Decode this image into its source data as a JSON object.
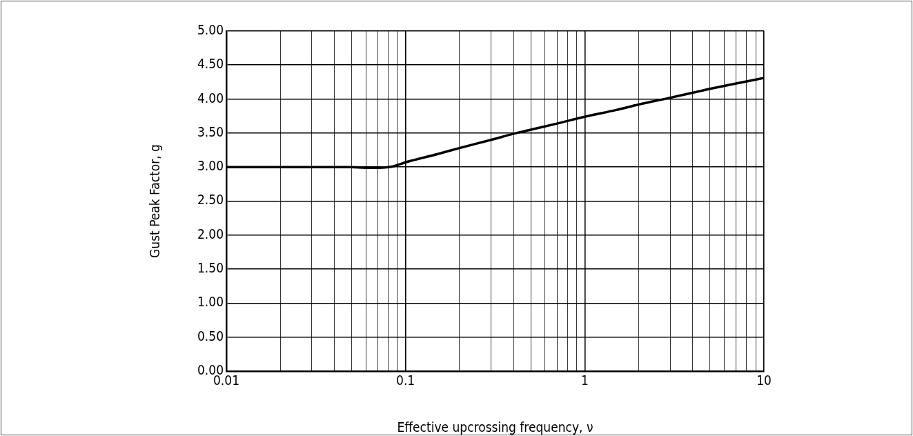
{
  "chart_data": {
    "type": "line",
    "xlabel": "Effective upcrossing frequency, ν",
    "ylabel": "Gust Peak Factor, g",
    "x": [
      0.01,
      0.02,
      0.03,
      0.05,
      0.06,
      0.07,
      0.08,
      0.085,
      0.09,
      0.1,
      0.15,
      0.2,
      0.3,
      0.4,
      0.5,
      0.7,
      1,
      1.5,
      2,
      3,
      5,
      7,
      10
    ],
    "series": [
      {
        "color": "#000000",
        "values": [
          3.0,
          3.0,
          3.0,
          3.0,
          2.99,
          2.99,
          3.0,
          3.01,
          3.03,
          3.07,
          3.19,
          3.28,
          3.4,
          3.49,
          3.55,
          3.64,
          3.74,
          3.84,
          3.92,
          4.02,
          4.15,
          4.23,
          4.31
        ]
      }
    ],
    "log": "x",
    "xlim": [
      0.01,
      10
    ],
    "ylim": [
      0,
      5
    ],
    "xticks": [
      0.01,
      {
        "value": 0.02,
        "label": null
      },
      {
        "value": 0.03,
        "label": null
      },
      {
        "value": 0.04,
        "label": null
      },
      {
        "value": 0.05,
        "label": null
      },
      {
        "value": 0.06,
        "label": null
      },
      {
        "value": 0.07,
        "label": null
      },
      {
        "value": 0.08,
        "label": null
      },
      {
        "value": 0.09,
        "label": null
      },
      0.1,
      {
        "value": 0.2,
        "label": null
      },
      {
        "value": 0.3,
        "label": null
      },
      {
        "value": 0.4,
        "label": null
      },
      {
        "value": 0.5,
        "label": null
      },
      {
        "value": 0.6,
        "label": null
      },
      {
        "value": 0.7,
        "label": null
      },
      {
        "value": 0.8,
        "label": null
      },
      {
        "value": 0.9,
        "label": null
      },
      1,
      {
        "value": 2,
        "label": null
      },
      {
        "value": 3,
        "label": null
      },
      {
        "value": 4,
        "label": null
      },
      {
        "value": 5,
        "label": null
      },
      {
        "value": 6,
        "label": null
      },
      {
        "value": 7,
        "label": null
      },
      {
        "value": 8,
        "label": null
      },
      {
        "value": 9,
        "label": null
      },
      10
    ],
    "yticks": [
      {
        "value": 0,
        "label": "0.00"
      },
      {
        "value": 0.5,
        "label": "0.50"
      },
      {
        "value": 1,
        "label": "1.00"
      },
      {
        "value": 1.5,
        "label": "1.50"
      },
      {
        "value": 2,
        "label": "2.00"
      },
      {
        "value": 2.5,
        "label": "2.50"
      },
      {
        "value": 3,
        "label": "3.00"
      },
      {
        "value": 3.5,
        "label": "3.50"
      },
      {
        "value": 4,
        "label": "4.00"
      },
      {
        "value": 4.5,
        "label": "4.50"
      },
      {
        "value": 5,
        "label": "5.00"
      }
    ],
    "grid": true,
    "marker": "none",
    "line_style": "solid",
    "legend": false
  }
}
